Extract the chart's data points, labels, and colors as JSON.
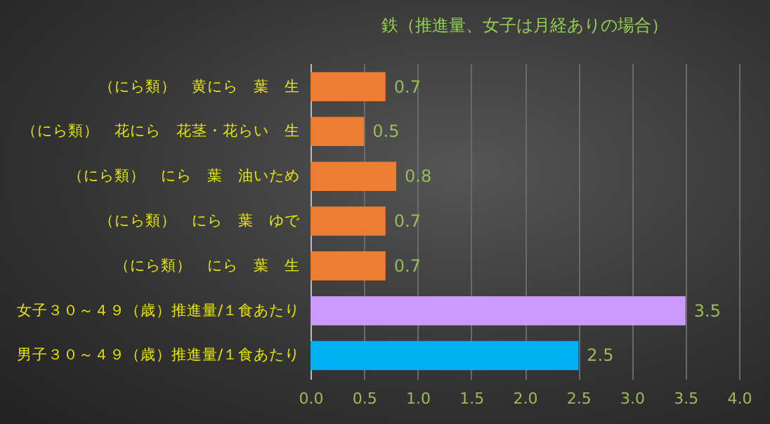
{
  "chart_data": {
    "type": "bar",
    "orientation": "horizontal",
    "title": "鉄（推進量、女子は月経ありの場合）",
    "categories": [
      "（にら類）　黄にら　葉　生",
      "（にら類）　花にら　花茎・花らい　生",
      "（にら類）　にら　葉　油いため",
      "（にら類）　にら　葉　ゆで",
      "（にら類）　にら　葉　生",
      "女子３０～４９（歳）推進量/１食あたり",
      "男子３０～４９（歳）推進量/１食あたり"
    ],
    "values": [
      0.7,
      0.5,
      0.8,
      0.7,
      0.7,
      3.5,
      2.5
    ],
    "colors": [
      "#ed7d31",
      "#ed7d31",
      "#ed7d31",
      "#ed7d31",
      "#ed7d31",
      "#cc99ff",
      "#00b0f0"
    ],
    "xlim": [
      0,
      4
    ],
    "xticks": [
      {
        "value": 0,
        "label": "0.0"
      },
      {
        "value": 0.5,
        "label": "0.5"
      },
      {
        "value": 1,
        "label": "1.0"
      },
      {
        "value": 1.5,
        "label": "1.5"
      },
      {
        "value": 2,
        "label": "2.0"
      },
      {
        "value": 2.5,
        "label": "2.5"
      },
      {
        "value": 3,
        "label": "3.0"
      },
      {
        "value": 3.5,
        "label": "3.5"
      },
      {
        "value": 4,
        "label": "4.0"
      }
    ],
    "grid": "x",
    "data_labels": true
  }
}
